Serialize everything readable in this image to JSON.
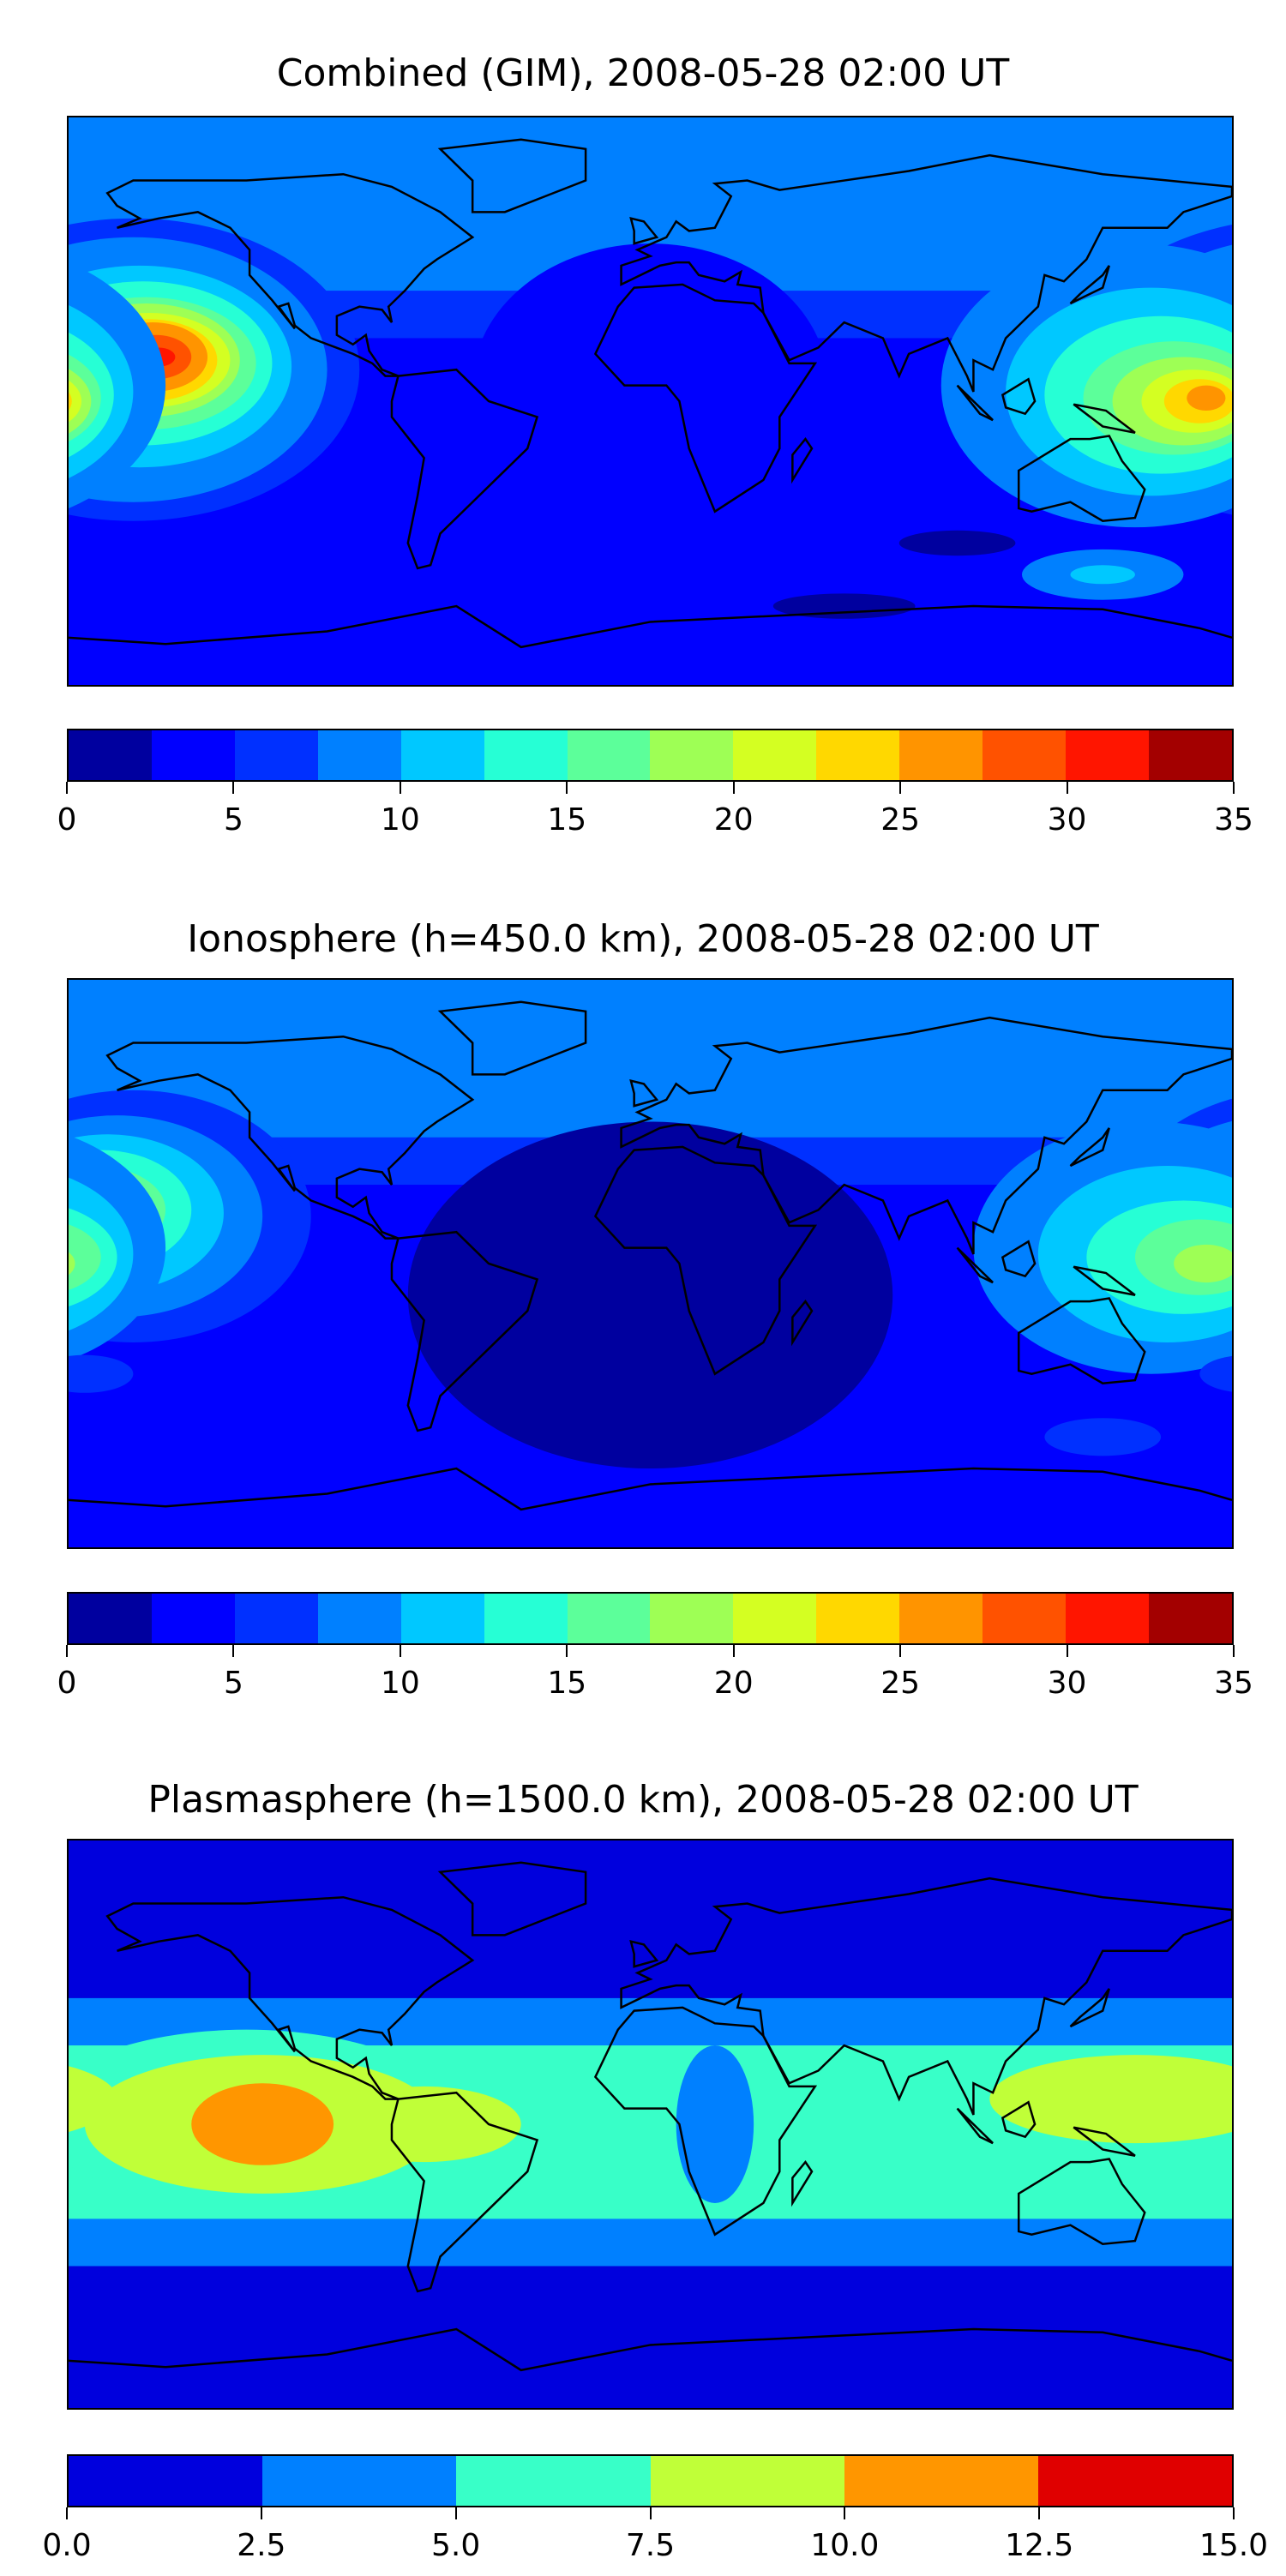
{
  "chart_data": [
    {
      "type": "heatmap",
      "title": "Combined (GIM), 2008-05-28 02:00 UT",
      "xlim": [
        -180,
        180
      ],
      "ylim": [
        -90,
        90
      ],
      "levels": [
        0,
        2.5,
        5,
        7.5,
        10,
        12.5,
        15,
        17.5,
        20,
        22.5,
        25,
        27.5,
        30,
        32.5,
        35
      ],
      "colors": [
        "#00009f",
        "#0000ff",
        "#0030ff",
        "#0080ff",
        "#00c8ff",
        "#26ffd5",
        "#5cff9a",
        "#9eff55",
        "#d4ff22",
        "#ffd800",
        "#ff9400",
        "#ff5200",
        "#ff1500",
        "#a30000"
      ],
      "colorbar_ticks": [
        "0",
        "5",
        "10",
        "15",
        "20",
        "25",
        "30",
        "35"
      ],
      "colorbar_tick_values": [
        0,
        5,
        10,
        15,
        20,
        25,
        30,
        35
      ],
      "background_level": 1,
      "bands": [
        {
          "lat_min": 35,
          "lat_max": 90,
          "level": 3
        },
        {
          "lat_min": 20,
          "lat_max": 35,
          "level": 2
        }
      ],
      "features": [
        {
          "lon": -160,
          "lat": 10,
          "rlon": 70,
          "rlat": 48,
          "level": 2
        },
        {
          "lon": -160,
          "lat": 10,
          "rlon": 60,
          "rlat": 42,
          "level": 3
        },
        {
          "lon": -158,
          "lat": 11,
          "rlon": 47,
          "rlat": 32,
          "level": 4
        },
        {
          "lon": -157,
          "lat": 12,
          "rlon": 40,
          "rlat": 26,
          "level": 5
        },
        {
          "lon": -156,
          "lat": 12,
          "rlon": 34,
          "rlat": 21,
          "level": 6
        },
        {
          "lon": -156,
          "lat": 13,
          "rlon": 29,
          "rlat": 18,
          "level": 7
        },
        {
          "lon": -155,
          "lat": 13,
          "rlon": 25,
          "rlat": 15,
          "level": 8
        },
        {
          "lon": -155,
          "lat": 13,
          "rlon": 21,
          "rlat": 13,
          "level": 9
        },
        {
          "lon": -154,
          "lat": 14,
          "rlon": 17,
          "rlat": 11,
          "level": 10
        },
        {
          "lon": -153,
          "lat": 14,
          "rlon": 11,
          "rlat": 7,
          "level": 11
        },
        {
          "lon": -152,
          "lat": 14,
          "rlon": 5,
          "rlat": 3,
          "level": 12
        },
        {
          "lon": 150,
          "lat": 5,
          "rlon": 60,
          "rlat": 45,
          "level": 3
        },
        {
          "lon": 155,
          "lat": 3,
          "rlon": 45,
          "rlat": 33,
          "level": 4
        },
        {
          "lon": 158,
          "lat": 2,
          "rlon": 36,
          "rlat": 25,
          "level": 5
        },
        {
          "lon": 162,
          "lat": 1,
          "rlon": 28,
          "rlat": 18,
          "level": 6
        },
        {
          "lon": 165,
          "lat": 0,
          "rlon": 22,
          "rlat": 14,
          "level": 7
        },
        {
          "lon": 168,
          "lat": 0,
          "rlon": 16,
          "rlat": 10,
          "level": 8
        },
        {
          "lon": 170,
          "lat": 0,
          "rlon": 11,
          "rlat": 7,
          "level": 9
        },
        {
          "lon": 172,
          "lat": 1,
          "rlon": 6,
          "rlat": 4,
          "level": 10
        },
        {
          "lon": 140,
          "lat": -55,
          "rlon": 25,
          "rlat": 8,
          "level": 3
        },
        {
          "lon": 140,
          "lat": -55,
          "rlon": 10,
          "rlat": 3,
          "level": 4
        },
        {
          "lon": 60,
          "lat": -65,
          "rlon": 22,
          "rlat": 4,
          "level": 0
        },
        {
          "lon": 95,
          "lat": -45,
          "rlon": 18,
          "rlat": 4,
          "level": 0
        },
        {
          "lon": 0,
          "lat": 5,
          "rlon": 55,
          "rlat": 45,
          "level": 1
        }
      ]
    },
    {
      "type": "heatmap",
      "title": "Ionosphere  (h=450.0 km), 2008-05-28 02:00 UT",
      "xlim": [
        -180,
        180
      ],
      "ylim": [
        -90,
        90
      ],
      "levels": [
        0,
        2.5,
        5,
        7.5,
        10,
        12.5,
        15,
        17.5,
        20,
        22.5,
        25,
        27.5,
        30,
        32.5,
        35
      ],
      "colors": [
        "#00009f",
        "#0000ff",
        "#0030ff",
        "#0080ff",
        "#00c8ff",
        "#26ffd5",
        "#5cff9a",
        "#9eff55",
        "#d4ff22",
        "#ffd800",
        "#ff9400",
        "#ff5200",
        "#ff1500",
        "#a30000"
      ],
      "colorbar_ticks": [
        "0",
        "5",
        "10",
        "15",
        "20",
        "25",
        "30",
        "35"
      ],
      "colorbar_tick_values": [
        0,
        5,
        10,
        15,
        20,
        25,
        30,
        35
      ],
      "background_level": 1,
      "bands": [
        {
          "lat_min": 40,
          "lat_max": 90,
          "level": 3
        },
        {
          "lat_min": 25,
          "lat_max": 40,
          "level": 2
        }
      ],
      "features": [
        {
          "lon": 0,
          "lat": -10,
          "rlon": 75,
          "rlat": 55,
          "level": 0
        },
        {
          "lon": -160,
          "lat": 15,
          "rlon": 55,
          "rlat": 40,
          "level": 2
        },
        {
          "lon": -165,
          "lat": 15,
          "rlon": 45,
          "rlat": 32,
          "level": 3
        },
        {
          "lon": -168,
          "lat": 16,
          "rlon": 36,
          "rlat": 25,
          "level": 4
        },
        {
          "lon": -170,
          "lat": 17,
          "rlon": 28,
          "rlat": 19,
          "level": 5
        },
        {
          "lon": -172,
          "lat": 17,
          "rlon": 22,
          "rlat": 14,
          "level": 6
        },
        {
          "lon": -172,
          "lat": 18,
          "rlon": 15,
          "rlat": 10,
          "level": 7
        },
        {
          "lon": -170,
          "lat": 19,
          "rlon": 9,
          "rlat": 6,
          "level": 8
        },
        {
          "lon": -170,
          "lat": 20,
          "rlon": 4,
          "rlat": 3,
          "level": 9
        },
        {
          "lon": 155,
          "lat": 5,
          "rlon": 55,
          "rlat": 40,
          "level": 3
        },
        {
          "lon": 160,
          "lat": 3,
          "rlon": 40,
          "rlat": 28,
          "level": 4
        },
        {
          "lon": 165,
          "lat": 2,
          "rlon": 30,
          "rlat": 18,
          "level": 5
        },
        {
          "lon": 170,
          "lat": 2,
          "rlon": 20,
          "rlat": 12,
          "level": 6
        },
        {
          "lon": 172,
          "lat": 0,
          "rlon": 10,
          "rlat": 6,
          "level": 7
        },
        {
          "lon": -175,
          "lat": -35,
          "rlon": 15,
          "rlat": 6,
          "level": 2
        },
        {
          "lon": 140,
          "lat": -55,
          "rlon": 18,
          "rlat": 6,
          "level": 2
        }
      ]
    },
    {
      "type": "heatmap",
      "title": "Plasmasphere (h=1500.0 km), 2008-05-28 02:00 UT",
      "xlim": [
        -180,
        180
      ],
      "ylim": [
        -90,
        90
      ],
      "levels": [
        0,
        2.5,
        5,
        7.5,
        10,
        12.5,
        15
      ],
      "colors": [
        "#0000dd",
        "#0080ff",
        "#38ffc8",
        "#c0ff38",
        "#ff9600",
        "#e00000"
      ],
      "colorbar_ticks": [
        "0.0",
        "2.5",
        "5.0",
        "7.5",
        "10.0",
        "12.5",
        "15.0"
      ],
      "colorbar_tick_values": [
        0,
        2.5,
        5,
        7.5,
        10,
        12.5,
        15
      ],
      "background_level": 0,
      "bands": [
        {
          "lat_min": -45,
          "lat_max": 40,
          "level": 1
        },
        {
          "lat_min": -30,
          "lat_max": 25,
          "level": 2
        }
      ],
      "features": [
        {
          "lon": -125,
          "lat": 2,
          "rlon": 65,
          "rlat": 28,
          "level": 2
        },
        {
          "lon": -120,
          "lat": 0,
          "rlon": 55,
          "rlat": 22,
          "level": 3
        },
        {
          "lon": -70,
          "lat": 0,
          "rlon": 30,
          "rlat": 12,
          "level": 3
        },
        {
          "lon": -120,
          "lat": 0,
          "rlon": 22,
          "rlat": 13,
          "level": 4
        },
        {
          "lon": -170,
          "lat": 10,
          "rlon": 2,
          "rlat": 3,
          "level": 4
        },
        {
          "lon": 150,
          "lat": 8,
          "rlon": 45,
          "rlat": 14,
          "level": 3
        },
        {
          "lon": 20,
          "lat": 0,
          "rlon": 12,
          "rlat": 25,
          "level": 1
        }
      ]
    }
  ]
}
